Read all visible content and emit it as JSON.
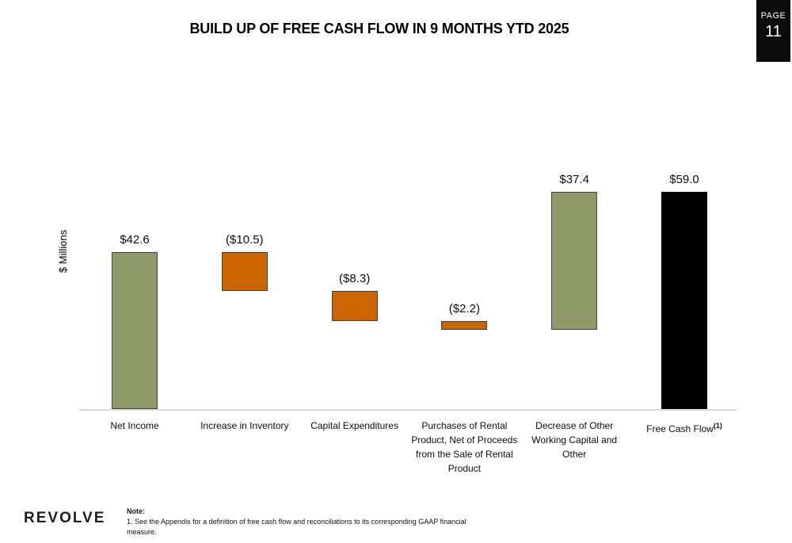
{
  "title": "BUILD UP OF FREE CASH FLOW IN 9 MONTHS YTD 2025",
  "page_badge": {
    "label": "PAGE",
    "number": "11"
  },
  "chart_data": {
    "type": "waterfall",
    "title": "BUILD UP OF FREE CASH FLOW IN 9 MONTHS YTD 2025",
    "ylabel": "$ Millions",
    "xlabel": "",
    "ylim": [
      0,
      63
    ],
    "grid": false,
    "legend": false,
    "categories": [
      "Net Income",
      "Increase in Inventory",
      "Capital Expenditures",
      "Purchases of Rental Product, Net of Proceeds from the Sale of Rental Product",
      "Decrease of Other Working Capital and Other",
      "Free Cash Flow"
    ],
    "values": [
      42.6,
      -10.5,
      -8.3,
      -2.2,
      37.4,
      59.0
    ],
    "value_labels": [
      "$42.6",
      "($10.5)",
      "($8.3)",
      "($2.2)",
      "$37.4",
      "$59.0"
    ],
    "bar_roles": [
      "positive",
      "negative",
      "negative",
      "negative",
      "positive",
      "total"
    ],
    "running_totals": [
      42.6,
      32.1,
      23.8,
      21.6,
      59.0,
      59.0
    ],
    "last_category_footnote": "(1)",
    "colors": {
      "positive": "#8f996b",
      "negative": "#cc6602",
      "total": "#000000",
      "bar_border": "#3f3f3f",
      "axis_line": "#d9d9d9"
    }
  },
  "footer": {
    "logo_text": "REVOLVE",
    "note_label": "Note:",
    "note_line": "1.  See the Appendix for a definition of free cash flow and reconciliations to its corresponding GAAP financial measure."
  }
}
